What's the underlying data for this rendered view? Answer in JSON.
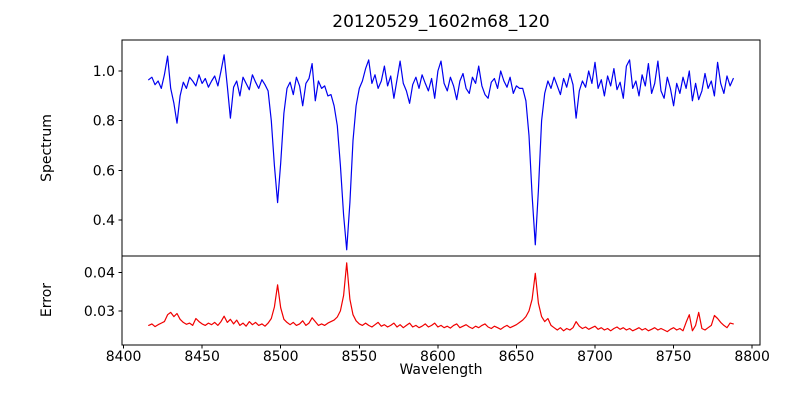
{
  "figure": {
    "title": "20120529_1602m68_120",
    "background": "#ffffff",
    "spine_color": "#000000"
  },
  "x_axis": {
    "label": "Wavelength",
    "ticks": [
      8400,
      8450,
      8500,
      8550,
      8600,
      8650,
      8700,
      8750,
      8800
    ],
    "tick_labels": [
      "8400",
      "8450",
      "8500",
      "8550",
      "8600",
      "8650",
      "8700",
      "8750",
      "8800"
    ]
  },
  "chart_data": [
    {
      "type": "line",
      "name": "spectrum",
      "ylabel": "Spectrum",
      "line_color": "#0000f0",
      "legend": "none",
      "grid": false,
      "xlim": [
        8399,
        8805
      ],
      "ylim": [
        0.255,
        1.125
      ],
      "yticks": [
        0.4,
        0.6,
        0.8,
        1.0
      ],
      "ytick_labels": [
        "0.4",
        "0.6",
        "0.8",
        "1.0"
      ],
      "absorption_lines": [
        {
          "wavelength": 8498,
          "depth": 0.47
        },
        {
          "wavelength": 8542,
          "depth": 0.28
        },
        {
          "wavelength": 8662,
          "depth": 0.3
        }
      ],
      "x_start": 8416,
      "x_step": 2,
      "values": [
        0.965,
        0.975,
        0.945,
        0.96,
        0.93,
        0.985,
        1.06,
        0.93,
        0.87,
        0.79,
        0.9,
        0.955,
        0.93,
        0.975,
        0.96,
        0.94,
        0.985,
        0.95,
        0.97,
        0.935,
        0.96,
        0.98,
        0.94,
        1.0,
        1.065,
        0.94,
        0.81,
        0.935,
        0.96,
        0.9,
        0.975,
        0.95,
        0.925,
        0.985,
        0.955,
        0.93,
        0.965,
        0.945,
        0.92,
        0.8,
        0.62,
        0.47,
        0.63,
        0.83,
        0.93,
        0.955,
        0.905,
        0.975,
        0.94,
        0.86,
        0.95,
        0.97,
        1.03,
        0.88,
        0.96,
        0.93,
        0.94,
        0.9,
        0.905,
        0.86,
        0.78,
        0.62,
        0.42,
        0.28,
        0.47,
        0.72,
        0.86,
        0.93,
        0.96,
        1.01,
        1.045,
        0.95,
        0.985,
        0.93,
        0.96,
        1.02,
        0.94,
        0.98,
        0.89,
        0.965,
        1.04,
        0.95,
        0.92,
        0.87,
        0.945,
        0.975,
        0.93,
        0.985,
        0.95,
        0.92,
        0.97,
        0.89,
        1.0,
        1.04,
        0.95,
        0.92,
        0.975,
        0.94,
        0.885,
        0.96,
        0.99,
        0.93,
        0.91,
        0.975,
        0.95,
        1.02,
        0.94,
        0.905,
        0.89,
        0.955,
        0.97,
        0.93,
        1.0,
        0.96,
        0.935,
        0.975,
        0.91,
        0.94,
        0.93,
        0.93,
        0.88,
        0.74,
        0.5,
        0.3,
        0.52,
        0.8,
        0.91,
        0.96,
        0.93,
        0.975,
        0.94,
        0.905,
        0.97,
        0.935,
        0.99,
        0.945,
        0.81,
        0.92,
        0.96,
        0.935,
        1.0,
        0.95,
        1.035,
        0.93,
        0.965,
        0.9,
        0.98,
        0.94,
        1.01,
        0.925,
        0.955,
        0.89,
        1.02,
        1.045,
        0.93,
        0.96,
        0.9,
        0.985,
        0.94,
        1.03,
        0.91,
        0.95,
        1.04,
        0.92,
        0.89,
        0.975,
        0.93,
        0.86,
        0.95,
        0.91,
        0.975,
        0.93,
        1.0,
        0.88,
        0.95,
        0.885,
        0.92,
        0.99,
        0.93,
        0.96,
        0.9,
        1.035,
        0.95,
        0.91,
        0.98,
        0.94,
        0.97
      ]
    },
    {
      "type": "line",
      "name": "error",
      "ylabel": "Error",
      "line_color": "#f00000",
      "legend": "none",
      "grid": false,
      "xlim": [
        8399,
        8805
      ],
      "ylim": [
        0.0211,
        0.0443
      ],
      "yticks": [
        0.03,
        0.04
      ],
      "ytick_labels": [
        "0.03",
        "0.04"
      ],
      "error_peaks": [
        {
          "wavelength": 8498,
          "value": 0.0368
        },
        {
          "wavelength": 8542,
          "value": 0.0425
        },
        {
          "wavelength": 8662,
          "value": 0.0398
        }
      ],
      "x_start": 8416,
      "x_step": 2,
      "values": [
        0.0262,
        0.0266,
        0.0259,
        0.0264,
        0.0268,
        0.0272,
        0.029,
        0.0296,
        0.0285,
        0.0293,
        0.0278,
        0.027,
        0.0265,
        0.0268,
        0.0262,
        0.028,
        0.0272,
        0.0266,
        0.0262,
        0.0268,
        0.0264,
        0.027,
        0.0262,
        0.0272,
        0.0286,
        0.027,
        0.0278,
        0.0266,
        0.0276,
        0.0262,
        0.0268,
        0.026,
        0.0272,
        0.0264,
        0.027,
        0.0262,
        0.0266,
        0.026,
        0.0268,
        0.028,
        0.031,
        0.0368,
        0.0308,
        0.0278,
        0.027,
        0.0264,
        0.027,
        0.0262,
        0.0266,
        0.0274,
        0.0262,
        0.0268,
        0.0282,
        0.0272,
        0.0262,
        0.0266,
        0.0262,
        0.0268,
        0.0272,
        0.0276,
        0.0284,
        0.03,
        0.034,
        0.0425,
        0.033,
        0.029,
        0.0274,
        0.0266,
        0.0262,
        0.0268,
        0.0262,
        0.0258,
        0.0264,
        0.027,
        0.026,
        0.0264,
        0.0258,
        0.0262,
        0.0268,
        0.0258,
        0.0264,
        0.0256,
        0.0262,
        0.0268,
        0.0258,
        0.0262,
        0.0256,
        0.026,
        0.0266,
        0.0258,
        0.0262,
        0.0268,
        0.0258,
        0.0262,
        0.0256,
        0.026,
        0.0255,
        0.0262,
        0.0266,
        0.0256,
        0.026,
        0.0264,
        0.0258,
        0.0254,
        0.026,
        0.0256,
        0.0262,
        0.0266,
        0.0258,
        0.0254,
        0.026,
        0.0256,
        0.0252,
        0.0258,
        0.0262,
        0.0256,
        0.026,
        0.0264,
        0.027,
        0.0276,
        0.0285,
        0.03,
        0.033,
        0.0398,
        0.032,
        0.0285,
        0.0272,
        0.028,
        0.0262,
        0.0256,
        0.025,
        0.0256,
        0.0248,
        0.0254,
        0.025,
        0.0256,
        0.0272,
        0.026,
        0.0254,
        0.0258,
        0.0252,
        0.0256,
        0.026,
        0.0252,
        0.0256,
        0.025,
        0.0254,
        0.0248,
        0.0254,
        0.0258,
        0.0252,
        0.0256,
        0.025,
        0.0254,
        0.0248,
        0.0252,
        0.0256,
        0.025,
        0.0254,
        0.0248,
        0.0252,
        0.0256,
        0.025,
        0.0254,
        0.025,
        0.0246,
        0.0252,
        0.0256,
        0.025,
        0.0254,
        0.0248,
        0.027,
        0.029,
        0.0248,
        0.0262,
        0.0296,
        0.0254,
        0.025,
        0.0256,
        0.0262,
        0.0288,
        0.028,
        0.027,
        0.0262,
        0.0256,
        0.0268,
        0.0266
      ]
    }
  ]
}
